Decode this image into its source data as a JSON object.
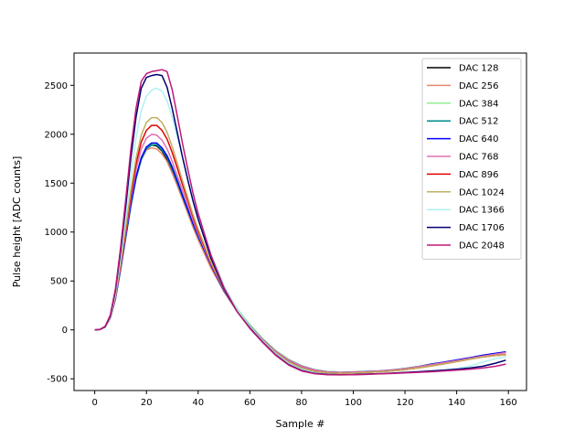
{
  "chart_data": {
    "type": "line",
    "xlabel": "Sample #",
    "ylabel": "Pulse height [ADC counts]",
    "xlim": [
      -8,
      167
    ],
    "ylim": [
      -620,
      2830
    ],
    "xticks": [
      0,
      20,
      40,
      60,
      80,
      100,
      120,
      140,
      160
    ],
    "yticks": [
      -500,
      0,
      500,
      1000,
      1500,
      2000,
      2500
    ],
    "grid": false,
    "legend_position": "top-right",
    "x": [
      0,
      2,
      4,
      6,
      8,
      10,
      12,
      14,
      16,
      18,
      20,
      22,
      24,
      26,
      28,
      30,
      32,
      34,
      36,
      38,
      40,
      45,
      50,
      55,
      60,
      65,
      70,
      75,
      80,
      85,
      90,
      95,
      100,
      105,
      110,
      115,
      120,
      125,
      130,
      135,
      140,
      145,
      150,
      155,
      159
    ],
    "series": [
      {
        "name": "DAC 128",
        "color": "#000000",
        "values": [
          0,
          5,
          30,
          120,
          320,
          620,
          950,
          1270,
          1550,
          1740,
          1850,
          1890,
          1880,
          1830,
          1740,
          1620,
          1490,
          1350,
          1210,
          1070,
          940,
          650,
          400,
          200,
          40,
          -100,
          -220,
          -310,
          -370,
          -410,
          -430,
          -435,
          -430,
          -425,
          -420,
          -410,
          -395,
          -375,
          -350,
          -330,
          -310,
          -285,
          -260,
          -240,
          -225
        ]
      },
      {
        "name": "DAC 256",
        "color": "#e8876a",
        "values": [
          0,
          5,
          30,
          120,
          320,
          620,
          950,
          1270,
          1550,
          1740,
          1840,
          1860,
          1850,
          1800,
          1720,
          1600,
          1470,
          1330,
          1190,
          1050,
          920,
          630,
          390,
          190,
          30,
          -110,
          -230,
          -320,
          -380,
          -415,
          -435,
          -440,
          -435,
          -430,
          -425,
          -415,
          -400,
          -380,
          -355,
          -335,
          -315,
          -295,
          -275,
          -260,
          -250
        ]
      },
      {
        "name": "DAC 384",
        "color": "#90ee90",
        "values": [
          0,
          5,
          30,
          120,
          320,
          620,
          950,
          1270,
          1550,
          1750,
          1860,
          1900,
          1900,
          1860,
          1780,
          1670,
          1540,
          1400,
          1260,
          1120,
          990,
          690,
          430,
          220,
          55,
          -90,
          -210,
          -300,
          -365,
          -405,
          -425,
          -432,
          -430,
          -425,
          -420,
          -410,
          -395,
          -375,
          -350,
          -330,
          -310,
          -285,
          -260,
          -240,
          -225
        ]
      },
      {
        "name": "DAC 512",
        "color": "#008b8b",
        "values": [
          0,
          5,
          30,
          120,
          320,
          620,
          950,
          1270,
          1550,
          1740,
          1850,
          1890,
          1890,
          1840,
          1760,
          1640,
          1500,
          1360,
          1220,
          1080,
          950,
          660,
          400,
          200,
          40,
          -100,
          -220,
          -310,
          -370,
          -410,
          -430,
          -435,
          -432,
          -428,
          -422,
          -412,
          -398,
          -378,
          -352,
          -332,
          -312,
          -288,
          -262,
          -242,
          -228
        ]
      },
      {
        "name": "DAC 640",
        "color": "#0000ff",
        "values": [
          0,
          5,
          30,
          120,
          320,
          620,
          960,
          1290,
          1570,
          1760,
          1870,
          1910,
          1910,
          1860,
          1780,
          1660,
          1520,
          1370,
          1230,
          1090,
          960,
          660,
          400,
          200,
          40,
          -100,
          -220,
          -310,
          -370,
          -410,
          -430,
          -435,
          -432,
          -428,
          -422,
          -412,
          -398,
          -378,
          -352,
          -330,
          -308,
          -285,
          -260,
          -240,
          -225
        ]
      },
      {
        "name": "DAC 768",
        "color": "#e070b0",
        "values": [
          0,
          5,
          30,
          120,
          330,
          640,
          990,
          1340,
          1640,
          1850,
          1960,
          2000,
          1990,
          1940,
          1850,
          1720,
          1570,
          1420,
          1270,
          1120,
          980,
          670,
          410,
          200,
          40,
          -100,
          -220,
          -310,
          -370,
          -410,
          -430,
          -435,
          -432,
          -428,
          -422,
          -412,
          -398,
          -378,
          -355,
          -335,
          -315,
          -292,
          -268,
          -248,
          -232
        ]
      },
      {
        "name": "DAC 896",
        "color": "#e00000",
        "values": [
          0,
          5,
          30,
          125,
          340,
          660,
          1020,
          1380,
          1700,
          1920,
          2040,
          2090,
          2090,
          2040,
          1950,
          1810,
          1650,
          1480,
          1320,
          1160,
          1010,
          680,
          410,
          200,
          35,
          -110,
          -235,
          -330,
          -390,
          -425,
          -440,
          -445,
          -440,
          -435,
          -428,
          -420,
          -408,
          -390,
          -370,
          -348,
          -325,
          -300,
          -278,
          -262,
          -255
        ]
      },
      {
        "name": "DAC 1024",
        "color": "#c0b060",
        "values": [
          0,
          5,
          30,
          125,
          345,
          680,
          1050,
          1430,
          1760,
          1990,
          2120,
          2170,
          2170,
          2120,
          2020,
          1870,
          1700,
          1520,
          1350,
          1180,
          1030,
          690,
          410,
          200,
          35,
          -110,
          -235,
          -330,
          -390,
          -425,
          -440,
          -445,
          -440,
          -435,
          -428,
          -420,
          -408,
          -390,
          -370,
          -348,
          -325,
          -300,
          -278,
          -262,
          -255
        ]
      },
      {
        "name": "DAC 1366",
        "color": "#b0f0f0",
        "values": [
          0,
          5,
          30,
          130,
          370,
          740,
          1160,
          1590,
          1970,
          2240,
          2390,
          2450,
          2470,
          2440,
          2340,
          2170,
          1970,
          1760,
          1550,
          1350,
          1170,
          770,
          450,
          210,
          35,
          -115,
          -245,
          -345,
          -405,
          -440,
          -455,
          -460,
          -458,
          -455,
          -450,
          -445,
          -438,
          -430,
          -420,
          -410,
          -395,
          -370,
          -330,
          -295,
          -275
        ]
      },
      {
        "name": "DAC 1706",
        "color": "#000070",
        "values": [
          0,
          5,
          30,
          140,
          400,
          800,
          1270,
          1760,
          2180,
          2470,
          2580,
          2600,
          2610,
          2600,
          2480,
          2260,
          2010,
          1760,
          1530,
          1320,
          1130,
          730,
          420,
          190,
          20,
          -125,
          -255,
          -355,
          -415,
          -445,
          -455,
          -458,
          -456,
          -452,
          -448,
          -442,
          -435,
          -428,
          -420,
          -412,
          -402,
          -390,
          -372,
          -340,
          -310
        ]
      },
      {
        "name": "DAC 2048",
        "color": "#c0187a",
        "values": [
          0,
          5,
          35,
          150,
          420,
          840,
          1340,
          1850,
          2270,
          2540,
          2620,
          2640,
          2650,
          2660,
          2640,
          2450,
          2180,
          1900,
          1640,
          1400,
          1190,
          760,
          430,
          190,
          15,
          -130,
          -260,
          -360,
          -420,
          -448,
          -458,
          -460,
          -458,
          -455,
          -450,
          -446,
          -440,
          -434,
          -428,
          -420,
          -412,
          -402,
          -390,
          -372,
          -350
        ]
      }
    ]
  }
}
